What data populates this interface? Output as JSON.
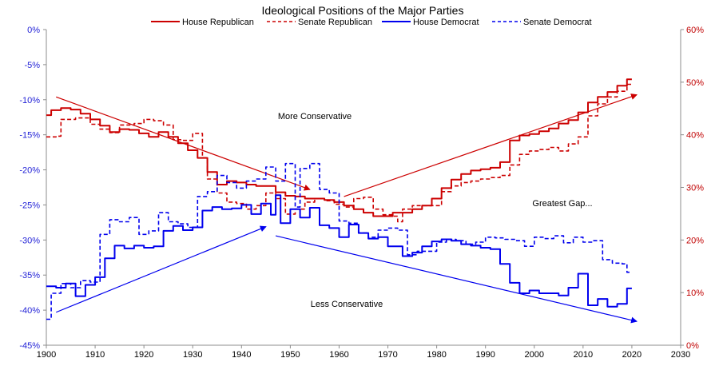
{
  "chart_data": {
    "type": "line",
    "title": "Ideological Positions of the Major Parties",
    "colors": {
      "republican": "#cc0000",
      "democrat": "#0000ee"
    },
    "x_axis": {
      "range": [
        1900,
        2030
      ],
      "ticks": [
        1900,
        1910,
        1920,
        1930,
        1940,
        1950,
        1960,
        1970,
        1980,
        1990,
        2000,
        2010,
        2020,
        2030
      ]
    },
    "y_left": {
      "range": [
        -45,
        0
      ],
      "unit": "%",
      "ticks": [
        "0%",
        "-5%",
        "-10%",
        "-15%",
        "-20%",
        "-25%",
        "-30%",
        "-35%",
        "-40%",
        "-45%"
      ],
      "tick_values": [
        0,
        -5,
        -10,
        -15,
        -20,
        -25,
        -30,
        -35,
        -40,
        -45
      ]
    },
    "y_right": {
      "range": [
        0,
        60
      ],
      "unit": "%",
      "ticks": [
        "60%",
        "50%",
        "40%",
        "30%",
        "20%",
        "10%",
        "0%"
      ],
      "tick_values": [
        60,
        50,
        40,
        30,
        20,
        10,
        0
      ]
    },
    "legend": {
      "placement": "top"
    },
    "series": [
      {
        "name": "House Republican",
        "axis": "left",
        "color": "#cc0000",
        "dash": "solid",
        "points": [
          [
            1900,
            -12.2
          ],
          [
            1901,
            -11.5
          ],
          [
            1903,
            -11.2
          ],
          [
            1905,
            -11.4
          ],
          [
            1907,
            -12.0
          ],
          [
            1909,
            -12.8
          ],
          [
            1911,
            -13.7
          ],
          [
            1913,
            -14.6
          ],
          [
            1915,
            -14.2
          ],
          [
            1917,
            -14.3
          ],
          [
            1919,
            -14.8
          ],
          [
            1921,
            -15.3
          ],
          [
            1923,
            -14.6
          ],
          [
            1925,
            -15.3
          ],
          [
            1927,
            -16.2
          ],
          [
            1929,
            -17.2
          ],
          [
            1931,
            -18.3
          ],
          [
            1933,
            -20.3
          ],
          [
            1935,
            -22.1
          ],
          [
            1937,
            -21.6
          ],
          [
            1939,
            -21.8
          ],
          [
            1941,
            -22.1
          ],
          [
            1943,
            -22.3
          ],
          [
            1945,
            -22.3
          ],
          [
            1947,
            -23.2
          ],
          [
            1949,
            -23.7
          ],
          [
            1951,
            -23.8
          ],
          [
            1953,
            -24.1
          ],
          [
            1955,
            -24.1
          ],
          [
            1957,
            -24.3
          ],
          [
            1959,
            -24.6
          ],
          [
            1961,
            -25.1
          ],
          [
            1963,
            -25.6
          ],
          [
            1965,
            -26.1
          ],
          [
            1967,
            -26.6
          ],
          [
            1969,
            -26.6
          ],
          [
            1971,
            -26.1
          ],
          [
            1973,
            -26.1
          ],
          [
            1975,
            -25.6
          ],
          [
            1977,
            -25.1
          ],
          [
            1979,
            -24.1
          ],
          [
            1981,
            -22.6
          ],
          [
            1983,
            -21.4
          ],
          [
            1985,
            -20.6
          ],
          [
            1987,
            -20.1
          ],
          [
            1989,
            -19.9
          ],
          [
            1991,
            -19.7
          ],
          [
            1993,
            -18.9
          ],
          [
            1995,
            -15.8
          ],
          [
            1997,
            -15.1
          ],
          [
            1999,
            -14.9
          ],
          [
            2001,
            -14.5
          ],
          [
            2003,
            -14.1
          ],
          [
            2005,
            -13.4
          ],
          [
            2007,
            -12.9
          ],
          [
            2009,
            -11.8
          ],
          [
            2011,
            -10.4
          ],
          [
            2013,
            -9.6
          ],
          [
            2015,
            -8.9
          ],
          [
            2017,
            -8.0
          ],
          [
            2019,
            -7.1
          ],
          [
            2020,
            -7.1
          ]
        ]
      },
      {
        "name": "Senate Republican",
        "axis": "left",
        "color": "#cc0000",
        "dash": "dashed",
        "points": [
          [
            1900,
            -15.3
          ],
          [
            1902,
            -15.2
          ],
          [
            1903,
            -12.8
          ],
          [
            1906,
            -12.6
          ],
          [
            1909,
            -13.5
          ],
          [
            1911,
            -14.2
          ],
          [
            1913,
            -14.7
          ],
          [
            1915,
            -13.6
          ],
          [
            1918,
            -13.4
          ],
          [
            1920,
            -12.8
          ],
          [
            1922,
            -13.0
          ],
          [
            1924,
            -13.6
          ],
          [
            1926,
            -15.7
          ],
          [
            1928,
            -15.8
          ],
          [
            1930,
            -14.8
          ],
          [
            1932,
            -18.3
          ],
          [
            1933,
            -21.3
          ],
          [
            1935,
            -23.3
          ],
          [
            1937,
            -24.6
          ],
          [
            1939,
            -24.8
          ],
          [
            1941,
            -25.6
          ],
          [
            1943,
            -25.1
          ],
          [
            1945,
            -23.3
          ],
          [
            1947,
            -24.1
          ],
          [
            1949,
            -26.3
          ],
          [
            1951,
            -25.6
          ],
          [
            1953,
            -24.6
          ],
          [
            1955,
            -24.1
          ],
          [
            1957,
            -24.4
          ],
          [
            1959,
            -24.9
          ],
          [
            1961,
            -25.3
          ],
          [
            1963,
            -24.1
          ],
          [
            1965,
            -23.9
          ],
          [
            1967,
            -25.6
          ],
          [
            1969,
            -26.4
          ],
          [
            1971,
            -26.6
          ],
          [
            1972,
            -27.4
          ],
          [
            1973,
            -25.6
          ],
          [
            1975,
            -25.1
          ],
          [
            1977,
            -25.1
          ],
          [
            1979,
            -25.1
          ],
          [
            1981,
            -23.1
          ],
          [
            1983,
            -22.3
          ],
          [
            1985,
            -21.8
          ],
          [
            1987,
            -21.6
          ],
          [
            1989,
            -21.3
          ],
          [
            1991,
            -21.1
          ],
          [
            1993,
            -20.8
          ],
          [
            1995,
            -19.3
          ],
          [
            1997,
            -17.8
          ],
          [
            1999,
            -17.3
          ],
          [
            2001,
            -17.1
          ],
          [
            2003,
            -16.8
          ],
          [
            2005,
            -17.3
          ],
          [
            2007,
            -16.3
          ],
          [
            2009,
            -15.3
          ],
          [
            2011,
            -12.3
          ],
          [
            2013,
            -10.6
          ],
          [
            2015,
            -9.6
          ],
          [
            2017,
            -8.8
          ],
          [
            2019,
            -7.8
          ],
          [
            2020,
            -7.8
          ]
        ]
      },
      {
        "name": "House Democrat",
        "axis": "left",
        "color": "#0000ee",
        "dash": "solid",
        "points": [
          [
            1900,
            -36.6
          ],
          [
            1902,
            -36.8
          ],
          [
            1904,
            -36.2
          ],
          [
            1906,
            -38.0
          ],
          [
            1908,
            -36.4
          ],
          [
            1910,
            -35.3
          ],
          [
            1912,
            -32.6
          ],
          [
            1914,
            -30.8
          ],
          [
            1916,
            -31.2
          ],
          [
            1918,
            -30.8
          ],
          [
            1920,
            -31.1
          ],
          [
            1922,
            -30.9
          ],
          [
            1924,
            -28.7
          ],
          [
            1926,
            -28.0
          ],
          [
            1928,
            -28.6
          ],
          [
            1930,
            -28.2
          ],
          [
            1932,
            -25.8
          ],
          [
            1934,
            -25.3
          ],
          [
            1936,
            -25.6
          ],
          [
            1938,
            -25.5
          ],
          [
            1940,
            -25.0
          ],
          [
            1942,
            -26.3
          ],
          [
            1944,
            -24.8
          ],
          [
            1946,
            -26.4
          ],
          [
            1947,
            -23.6
          ],
          [
            1948,
            -27.6
          ],
          [
            1950,
            -25.6
          ],
          [
            1952,
            -26.8
          ],
          [
            1954,
            -25.4
          ],
          [
            1956,
            -27.9
          ],
          [
            1958,
            -28.3
          ],
          [
            1960,
            -29.6
          ],
          [
            1962,
            -27.8
          ],
          [
            1964,
            -29.0
          ],
          [
            1966,
            -29.8
          ],
          [
            1968,
            -29.6
          ],
          [
            1970,
            -30.9
          ],
          [
            1972,
            -30.9
          ],
          [
            1973,
            -32.3
          ],
          [
            1975,
            -31.8
          ],
          [
            1977,
            -30.9
          ],
          [
            1979,
            -30.2
          ],
          [
            1981,
            -29.9
          ],
          [
            1983,
            -30.1
          ],
          [
            1985,
            -30.6
          ],
          [
            1987,
            -30.8
          ],
          [
            1989,
            -31.1
          ],
          [
            1991,
            -31.3
          ],
          [
            1993,
            -33.4
          ],
          [
            1995,
            -36.1
          ],
          [
            1997,
            -37.6
          ],
          [
            1999,
            -37.2
          ],
          [
            2001,
            -37.6
          ],
          [
            2003,
            -37.6
          ],
          [
            2005,
            -37.9
          ],
          [
            2007,
            -36.8
          ],
          [
            2009,
            -34.8
          ],
          [
            2011,
            -39.3
          ],
          [
            2013,
            -38.4
          ],
          [
            2015,
            -39.5
          ],
          [
            2017,
            -39.1
          ],
          [
            2019,
            -36.9
          ],
          [
            2020,
            -36.9
          ]
        ]
      },
      {
        "name": "Senate Democrat",
        "axis": "left",
        "color": "#0000ee",
        "dash": "dashed",
        "points": [
          [
            1900,
            -41.3
          ],
          [
            1901,
            -37.6
          ],
          [
            1903,
            -36.2
          ],
          [
            1905,
            -36.8
          ],
          [
            1907,
            -35.8
          ],
          [
            1909,
            -36.0
          ],
          [
            1911,
            -29.2
          ],
          [
            1913,
            -27.1
          ],
          [
            1915,
            -27.4
          ],
          [
            1917,
            -26.8
          ],
          [
            1919,
            -29.2
          ],
          [
            1921,
            -28.7
          ],
          [
            1923,
            -26.1
          ],
          [
            1925,
            -27.4
          ],
          [
            1927,
            -27.7
          ],
          [
            1929,
            -28.2
          ],
          [
            1931,
            -23.8
          ],
          [
            1933,
            -23.1
          ],
          [
            1935,
            -20.8
          ],
          [
            1937,
            -21.8
          ],
          [
            1939,
            -22.6
          ],
          [
            1941,
            -21.6
          ],
          [
            1943,
            -21.3
          ],
          [
            1945,
            -19.6
          ],
          [
            1947,
            -21.6
          ],
          [
            1949,
            -19.1
          ],
          [
            1951,
            -25.3
          ],
          [
            1952,
            -19.8
          ],
          [
            1954,
            -19.1
          ],
          [
            1956,
            -22.8
          ],
          [
            1958,
            -23.3
          ],
          [
            1960,
            -27.3
          ],
          [
            1962,
            -27.6
          ],
          [
            1964,
            -29.0
          ],
          [
            1966,
            -29.6
          ],
          [
            1968,
            -28.6
          ],
          [
            1970,
            -28.3
          ],
          [
            1972,
            -28.6
          ],
          [
            1974,
            -32.1
          ],
          [
            1976,
            -31.6
          ],
          [
            1978,
            -31.6
          ],
          [
            1980,
            -30.3
          ],
          [
            1982,
            -29.9
          ],
          [
            1984,
            -30.1
          ],
          [
            1986,
            -30.6
          ],
          [
            1988,
            -30.3
          ],
          [
            1990,
            -29.6
          ],
          [
            1992,
            -29.7
          ],
          [
            1994,
            -29.9
          ],
          [
            1996,
            -30.1
          ],
          [
            1998,
            -30.9
          ],
          [
            2000,
            -29.6
          ],
          [
            2002,
            -29.8
          ],
          [
            2004,
            -29.4
          ],
          [
            2006,
            -30.4
          ],
          [
            2008,
            -29.6
          ],
          [
            2010,
            -30.3
          ],
          [
            2012,
            -30.1
          ],
          [
            2014,
            -32.8
          ],
          [
            2016,
            -33.3
          ],
          [
            2018,
            -33.4
          ],
          [
            2019,
            -34.6
          ],
          [
            2020,
            -34.6
          ]
        ]
      }
    ],
    "annotations": [
      {
        "text": "More Conservative",
        "x": 1958,
        "y": -12.3
      },
      {
        "text": "Greatest Gap...",
        "x": 2006,
        "y": -24.7
      },
      {
        "text": "Less Conservative",
        "x": 1958,
        "y": -39.3
      }
    ],
    "trend_arrows": [
      {
        "color": "#cc0000",
        "from": [
          1902,
          -9.6
        ],
        "to": [
          1954,
          -22.8
        ]
      },
      {
        "color": "#cc0000",
        "from": [
          1961,
          -23.8
        ],
        "to": [
          2021,
          -9.3
        ]
      },
      {
        "color": "#0000ee",
        "from": [
          1902,
          -40.3
        ],
        "to": [
          1945,
          -28.1
        ]
      },
      {
        "color": "#0000ee",
        "from": [
          1947,
          -29.4
        ],
        "to": [
          2021,
          -41.6
        ]
      }
    ]
  }
}
